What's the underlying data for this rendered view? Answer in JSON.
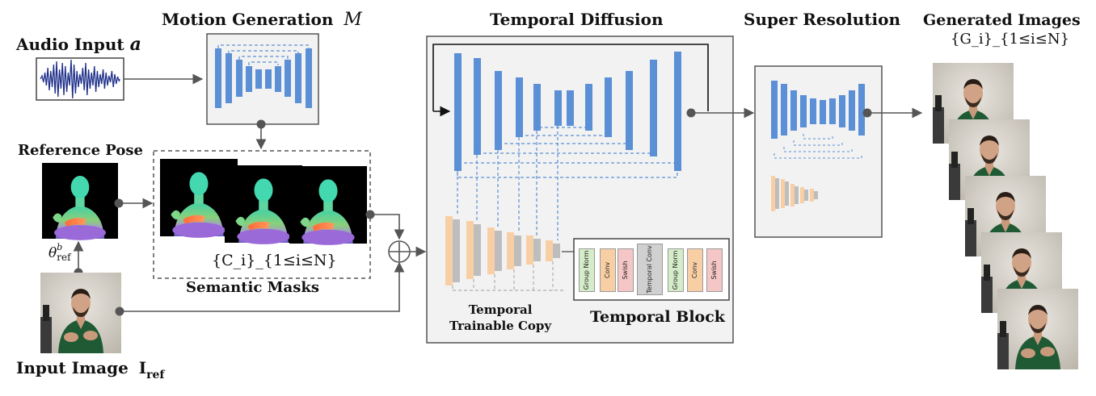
{
  "labels": {
    "audio_input": "Audio Input",
    "audio_symbol": "a",
    "motion_generation": "Motion Generation",
    "motion_symbol": "M",
    "reference_pose": "Reference Pose",
    "theta_main": "θ",
    "theta_sup": "b",
    "theta_sub": "ref",
    "semantic_masks_set": "{C_i}_{1≤i≤N}",
    "semantic_masks": "Semantic Masks",
    "input_image": "Input Image",
    "input_image_symbol_main": "I",
    "input_image_symbol_sub": "ref",
    "temporal_diffusion": "Temporal Diffusion",
    "temporal_trainable_copy_line1": "Temporal",
    "temporal_trainable_copy_line2": "Trainable Copy",
    "temporal_block": "Temporal Block",
    "super_resolution": "Super Resolution",
    "generated_images": "Generated Images",
    "generated_set": "{G_i}_{1≤i≤N}"
  },
  "temporal_block_cells": [
    {
      "label": "Group Norm",
      "color": "#d4ecc8"
    },
    {
      "label": "Conv",
      "color": "#f8cfa4"
    },
    {
      "label": "Swish",
      "color": "#f5c6c6"
    },
    {
      "label": "Temporal Conv",
      "color": "#d0d0d0"
    },
    {
      "label": "Group Norm",
      "color": "#d4ecc8"
    },
    {
      "label": "Conv",
      "color": "#f8cfa4"
    },
    {
      "label": "Swish",
      "color": "#f5c6c6"
    }
  ],
  "colors": {
    "unet_blue": "#5b8fd6",
    "copy_orange": "#f8cfa4",
    "copy_gray": "#bdbdbd",
    "dash_blue": "#5b8fd6",
    "arrow": "#555555"
  },
  "icons": [
    "audio-waveform-icon",
    "plus-circle-icon",
    "arrow-icon"
  ]
}
